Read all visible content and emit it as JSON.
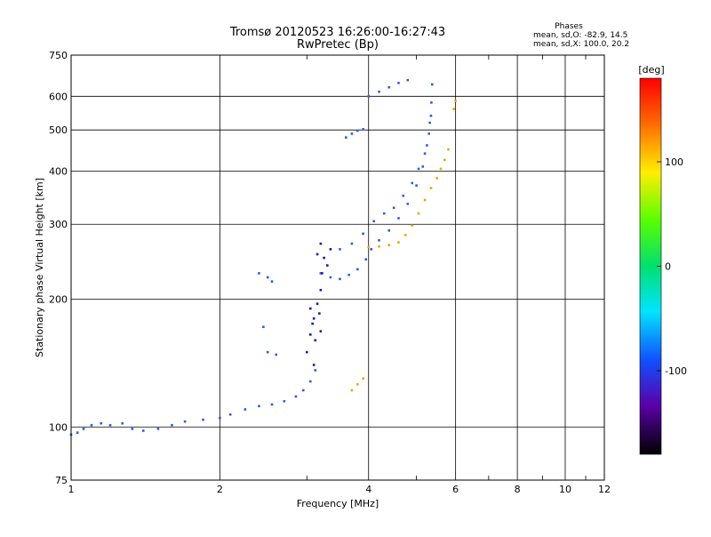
{
  "chart_data": {
    "type": "scatter",
    "title": "Tromsø 20120523 16:26:00-16:27:43",
    "subtitle": "RwPretec (Bp)",
    "xlabel": "Frequency [MHz]",
    "ylabel": "Stationary phase Virtual Height [km]",
    "xscale": "log",
    "yscale": "log",
    "xlim": [
      1,
      12
    ],
    "ylim": [
      75,
      750
    ],
    "x_ticks": [
      1,
      2,
      4,
      6,
      8,
      10,
      12
    ],
    "x_tick_labels": [
      "1",
      "2",
      "4",
      "6",
      "8",
      "10",
      "12"
    ],
    "y_ticks": [
      75,
      100,
      200,
      300,
      400,
      500,
      600,
      750
    ],
    "y_tick_labels": [
      "75",
      "100",
      "200",
      "300",
      "400",
      "500",
      "600",
      "750"
    ],
    "grid": true,
    "info": {
      "heading": "Phases",
      "line1": "mean, sd,O: -82.9, 14.5",
      "line2": "mean, sd,X: 100.0, 20.2"
    },
    "colorbar": {
      "label": "[deg]",
      "range": [
        -180,
        180
      ],
      "ticks": [
        100,
        0,
        -100
      ],
      "tick_labels": [
        "100",
        "0",
        "-100"
      ]
    },
    "series": [
      {
        "phase_deg": -82.9,
        "color": "#2a5ee8",
        "points": [
          [
            1.0,
            96
          ],
          [
            1.03,
            97
          ],
          [
            1.06,
            99
          ],
          [
            1.1,
            101
          ],
          [
            1.15,
            102
          ],
          [
            1.2,
            101
          ],
          [
            1.27,
            102
          ],
          [
            1.33,
            99
          ],
          [
            1.4,
            98
          ],
          [
            1.5,
            99
          ],
          [
            1.6,
            101
          ],
          [
            1.7,
            103
          ],
          [
            1.85,
            104
          ],
          [
            2.0,
            105
          ],
          [
            2.1,
            107
          ],
          [
            2.25,
            110
          ],
          [
            2.4,
            112
          ],
          [
            2.55,
            113
          ],
          [
            2.7,
            115
          ],
          [
            2.85,
            118
          ],
          [
            2.95,
            122
          ],
          [
            3.05,
            128
          ],
          [
            3.12,
            136
          ],
          [
            3.2,
            230
          ],
          [
            3.35,
            225
          ],
          [
            3.5,
            223
          ],
          [
            3.65,
            228
          ],
          [
            3.8,
            235
          ],
          [
            3.95,
            248
          ],
          [
            4.05,
            262
          ],
          [
            4.2,
            275
          ],
          [
            4.4,
            290
          ],
          [
            4.6,
            310
          ],
          [
            4.8,
            335
          ],
          [
            5.0,
            370
          ],
          [
            5.15,
            410
          ],
          [
            5.25,
            460
          ],
          [
            5.32,
            520
          ],
          [
            5.36,
            580
          ],
          [
            5.38,
            640
          ],
          [
            3.5,
            262
          ],
          [
            3.7,
            270
          ],
          [
            3.9,
            285
          ],
          [
            4.1,
            305
          ],
          [
            4.3,
            318
          ],
          [
            4.5,
            328
          ],
          [
            4.7,
            350
          ],
          [
            4.9,
            375
          ],
          [
            5.05,
            405
          ],
          [
            5.2,
            440
          ],
          [
            5.3,
            490
          ],
          [
            5.35,
            540
          ],
          [
            2.4,
            230
          ],
          [
            2.5,
            225
          ],
          [
            2.55,
            220
          ],
          [
            2.45,
            172
          ],
          [
            2.5,
            150
          ],
          [
            2.6,
            148
          ],
          [
            3.6,
            480
          ],
          [
            3.7,
            490
          ],
          [
            3.8,
            498
          ],
          [
            3.9,
            502
          ],
          [
            4.0,
            600
          ],
          [
            4.2,
            615
          ],
          [
            4.4,
            630
          ],
          [
            4.6,
            645
          ],
          [
            4.8,
            655
          ]
        ]
      },
      {
        "phase_deg": -110,
        "color": "#1a1ab0",
        "points": [
          [
            3.15,
            255
          ],
          [
            3.2,
            270
          ],
          [
            3.25,
            250
          ],
          [
            3.3,
            240
          ],
          [
            3.35,
            262
          ],
          [
            3.22,
            230
          ],
          [
            3.0,
            150
          ],
          [
            3.05,
            165
          ],
          [
            3.1,
            180
          ],
          [
            3.15,
            195
          ],
          [
            3.2,
            210
          ],
          [
            3.08,
            175
          ],
          [
            3.12,
            160
          ],
          [
            3.18,
            185
          ],
          [
            3.1,
            140
          ],
          [
            3.05,
            190
          ],
          [
            3.2,
            168
          ]
        ]
      },
      {
        "phase_deg": 100.0,
        "color": "#e8a800",
        "points": [
          [
            4.0,
            265
          ],
          [
            4.2,
            266
          ],
          [
            4.4,
            268
          ],
          [
            4.6,
            272
          ],
          [
            4.75,
            283
          ],
          [
            4.9,
            298
          ],
          [
            5.05,
            318
          ],
          [
            5.2,
            342
          ],
          [
            5.35,
            365
          ],
          [
            5.5,
            385
          ],
          [
            5.6,
            405
          ],
          [
            5.7,
            425
          ],
          [
            5.8,
            450
          ],
          [
            3.7,
            122
          ],
          [
            3.8,
            126
          ],
          [
            3.9,
            130
          ],
          [
            5.95,
            560
          ],
          [
            6.0,
            585
          ]
        ]
      }
    ]
  }
}
